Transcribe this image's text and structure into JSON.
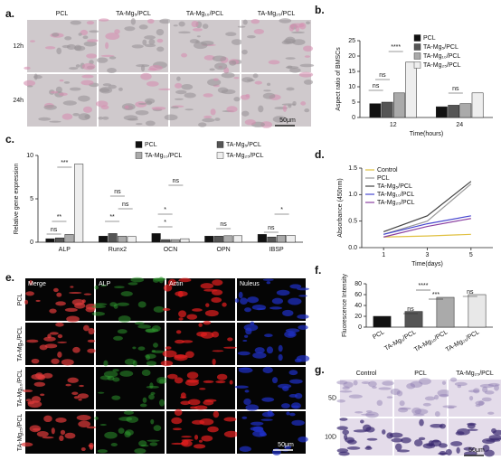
{
  "image_panels": [
    {
      "panel_label": "a.",
      "columns": [
        "PCL",
        "TA-Mg₅/PCL",
        "TA-Mg₁₀/PCL",
        "TA-Mg₂₅/PCL"
      ],
      "rows": [
        "12h",
        "24h"
      ],
      "scale_bar": "50μm"
    },
    {
      "panel_label": "e.",
      "columns": [
        "Merge",
        "ALP",
        "Actin",
        "Nuleus"
      ],
      "rows": [
        "PCL",
        "TA-Mg₅/PCL",
        "TA-Mg₁₀/PCL",
        "TA-Mg₂₅/PCL"
      ],
      "scale_bar": "50μm"
    },
    {
      "panel_label": "g.",
      "columns": [
        "Control",
        "PCL",
        "TA-Mg₂₅/PCL"
      ],
      "rows": [
        "5D",
        "10D"
      ],
      "scale_bar": "50μm"
    }
  ],
  "chart_data": [
    {
      "panel_label": "b.",
      "type": "bar",
      "ylabel": "Aspect ratio of BMSCs",
      "xlabel": "Time(hours)",
      "categories": [
        "12",
        "24"
      ],
      "series": [
        {
          "name": "PCL",
          "color": "#111111",
          "values": [
            4.5,
            3.5
          ]
        },
        {
          "name": "TA-Mg₅/PCL",
          "color": "#555555",
          "values": [
            5,
            4
          ]
        },
        {
          "name": "TA-Mg₁₀/PCL",
          "color": "#aaaaaa",
          "values": [
            8,
            4.5
          ]
        },
        {
          "name": "TA-Mg₂₅/PCL",
          "color": "#eeeeee",
          "values": [
            18,
            8
          ]
        }
      ],
      "ylim": [
        0,
        25
      ],
      "yticks": [
        0,
        5,
        10,
        15,
        20,
        25
      ],
      "annotations": [
        "****",
        "ns",
        "ns",
        "ns"
      ]
    },
    {
      "panel_label": "c.",
      "type": "bar",
      "ylabel": "Relative gene expression",
      "categories": [
        "ALP",
        "Runx2",
        "OCN",
        "OPN",
        "IBSP"
      ],
      "series": [
        {
          "name": "PCL",
          "color": "#111111",
          "values": [
            0.4,
            0.7,
            1.0,
            0.7,
            0.9
          ]
        },
        {
          "name": "TA-Mg₅/PCL",
          "color": "#555555",
          "values": [
            0.5,
            1.0,
            0.3,
            0.7,
            0.6
          ]
        },
        {
          "name": "TA-Mg₁₀/PCL",
          "color": "#aaaaaa",
          "values": [
            0.9,
            0.7,
            0.3,
            0.75,
            0.8
          ]
        },
        {
          "name": "TA-Mg₂₅/PCL",
          "color": "#eeeeee",
          "values": [
            9,
            0.65,
            0.4,
            0.75,
            0.8
          ]
        }
      ],
      "ylim": [
        0,
        10
      ],
      "yticks": [
        0,
        5,
        10
      ],
      "annotations": [
        "***",
        "**",
        "ns",
        "ns",
        "**",
        "ns",
        "*",
        "*",
        "ns",
        "ns",
        "*",
        "ns"
      ]
    },
    {
      "panel_label": "d.",
      "type": "line",
      "ylabel": "Absorbance (450nm)",
      "xlabel": "Time(days)",
      "x": [
        1,
        3,
        5
      ],
      "series": [
        {
          "name": "Control",
          "color": "#e0c040",
          "values": [
            0.2,
            0.22,
            0.25
          ]
        },
        {
          "name": "PCL",
          "color": "#999999",
          "values": [
            0.25,
            0.5,
            1.2
          ]
        },
        {
          "name": "TA-Mg₅/PCL",
          "color": "#444444",
          "values": [
            0.3,
            0.6,
            1.25
          ]
        },
        {
          "name": "TA-Mg₁₀/PCL",
          "color": "#4848d0",
          "values": [
            0.25,
            0.45,
            0.6
          ]
        },
        {
          "name": "TA-Mg₂₅/PCL",
          "color": "#8a3fa0",
          "values": [
            0.2,
            0.4,
            0.55
          ]
        }
      ],
      "xlim": [
        0,
        6
      ],
      "xticks": [
        1,
        3,
        5
      ],
      "ylim": [
        0,
        1.5
      ],
      "yticks": [
        {
          "value": 0,
          "label": "0.0"
        },
        {
          "value": 0.5,
          "label": "0.5"
        },
        {
          "value": 1,
          "label": "1.0"
        },
        {
          "value": 1.5,
          "label": "1.5"
        }
      ]
    },
    {
      "panel_label": "f.",
      "type": "bar",
      "ylabel": "Fluorescence Intensity",
      "categories": [
        "PCL",
        "TA-Mg₅/PCL",
        "TA-Mg₁₀/PCL",
        "TA-Mg₂₅/PCL"
      ],
      "values": [
        20,
        29,
        55,
        60
      ],
      "colors": [
        "#111111",
        "#555555",
        "#aaaaaa",
        "#e8e8e8"
      ],
      "ylim": [
        0,
        80
      ],
      "yticks": [
        0,
        20,
        40,
        60,
        80
      ],
      "annotations": [
        "****",
        "***",
        "ns",
        "ns"
      ]
    }
  ]
}
